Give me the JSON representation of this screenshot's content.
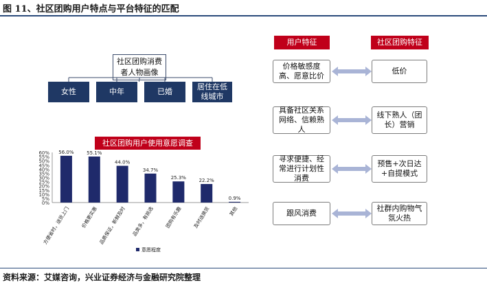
{
  "figure": {
    "title": "图 11、社区团购用户特点与平台特征的匹配",
    "source": "资料来源：艾媒咨询，兴业证券经济与金融研究院整理"
  },
  "persona": {
    "root": "社区团购消费者人物画像",
    "leaves": [
      "女性",
      "中年",
      "已婚",
      "居住在低线城市"
    ]
  },
  "survey": {
    "banner": "社区团购用户使用意愿调查"
  },
  "chart_data": {
    "type": "bar",
    "categories": [
      "方便省时，送货上门",
      "价格更实惠",
      "品质保证，新鲜及时",
      "品类多，有挑选",
      "团购有乐趣",
      "及时送换货",
      "其他"
    ],
    "values": [
      56.0,
      55.1,
      44.0,
      34.7,
      25.3,
      22.2,
      0.9
    ],
    "value_labels": [
      "56.0%",
      "55.1%",
      "44.0%",
      "34.7%",
      "25.3%",
      "22.2%",
      "0.9%"
    ],
    "ylim": [
      0,
      60
    ],
    "yticks": [
      "0%",
      "5%",
      "10%",
      "15%",
      "20%",
      "25%",
      "30%",
      "35%",
      "40%",
      "45%",
      "50%",
      "55%",
      "60%"
    ],
    "series": [
      {
        "name": "意愿程度",
        "values": [
          56.0,
          55.1,
          44.0,
          34.7,
          25.3,
          22.2,
          0.9
        ]
      }
    ],
    "legend_position": "bottom",
    "grid": false,
    "bar_color": "#1f2a6b"
  },
  "matching": {
    "user_header": "用户特征",
    "platform_header": "社区团购特征",
    "rows": [
      {
        "user": "价格敏感度高、愿意比价",
        "platform": "低价"
      },
      {
        "user": "具备社区关系网络、信赖熟人",
        "platform": "线下熟人（团长）营销"
      },
      {
        "user": "寻求便捷、经常进行计划性消费",
        "platform": "预售+次日达+自提模式"
      },
      {
        "user": "跟风消费",
        "platform": "社群内购物气氛火热"
      }
    ]
  },
  "colors": {
    "accent_red": "#c0001a",
    "navy": "#1f3864",
    "arrow_fill": "#a9b4d6"
  }
}
